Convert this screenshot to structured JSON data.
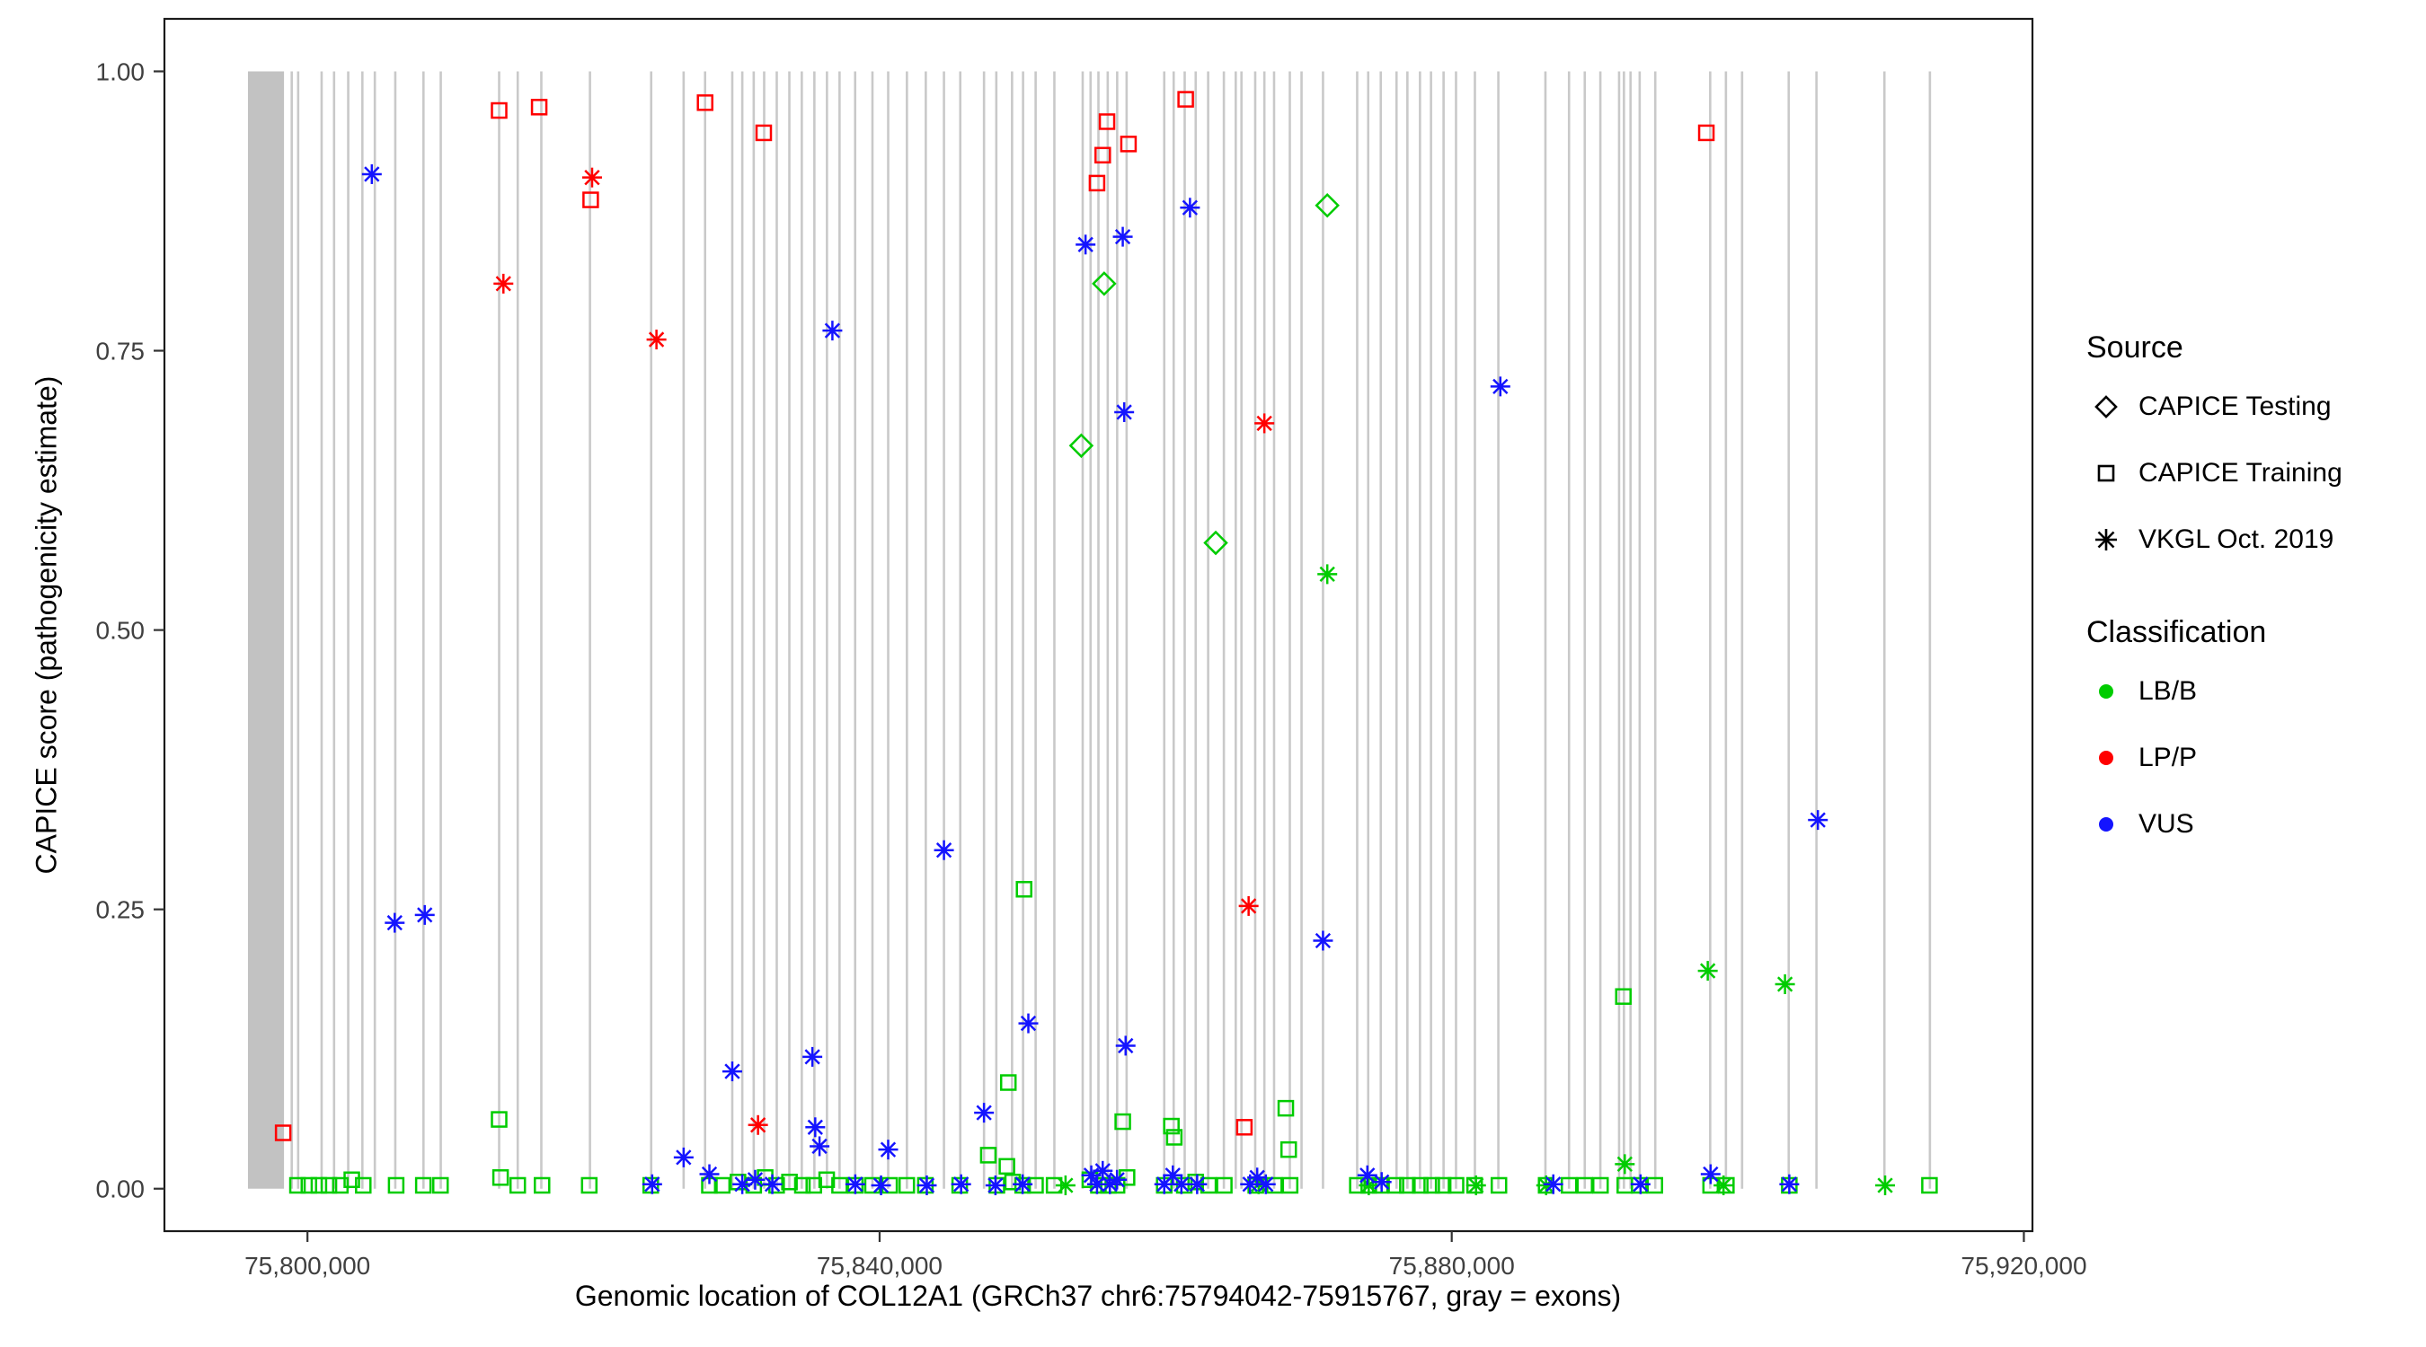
{
  "legend": {
    "source": {
      "title": "Source",
      "items": [
        {
          "label": "CAPICE Testing",
          "marker": "diamond"
        },
        {
          "label": "CAPICE Training",
          "marker": "square"
        },
        {
          "label": "VKGL Oct. 2019",
          "marker": "asterisk"
        }
      ]
    },
    "classification": {
      "title": "Classification",
      "items": [
        {
          "label": "LB/B",
          "color": "#00CC00"
        },
        {
          "label": "LP/P",
          "color": "#FF0000"
        },
        {
          "label": "VUS",
          "color": "#1414FF"
        }
      ]
    }
  },
  "chart_data": {
    "type": "scatter",
    "title": "",
    "xlabel": "Genomic location of COL12A1 (GRCh37 chr6:75794042-75915767, gray = exons)",
    "ylabel": "CAPICE score (pathogenicity estimate)",
    "xlim": [
      75790000,
      75920600
    ],
    "ylim": [
      -0.038,
      1.047
    ],
    "x_ticks": [
      {
        "value": 75800000,
        "label": "75,800,000"
      },
      {
        "value": 75840000,
        "label": "75,840,000"
      },
      {
        "value": 75880000,
        "label": "75,880,000"
      },
      {
        "value": 75920000,
        "label": "75,920,000"
      }
    ],
    "y_ticks": [
      {
        "value": 0.0,
        "label": "0.00"
      },
      {
        "value": 0.25,
        "label": "0.25"
      },
      {
        "value": 0.5,
        "label": "0.50"
      },
      {
        "value": 0.75,
        "label": "0.75"
      },
      {
        "value": 1.0,
        "label": "1.00"
      }
    ],
    "exon_color": "#C9C9C9",
    "exon_band_color": "#C2C2C2",
    "exon_bands": [
      {
        "start": 75795840,
        "end": 75798360
      }
    ],
    "exons": [
      75798900,
      75799350,
      75800990,
      75801860,
      75802850,
      75803840,
      75804710,
      75806140,
      75808110,
      75809320,
      75813400,
      75814700,
      75816350,
      75819750,
      75824030,
      75826300,
      75827800,
      75829700,
      75830400,
      75831200,
      75831930,
      75832810,
      75833690,
      75834560,
      75835440,
      75836320,
      75837200,
      75838290,
      75839500,
      75840600,
      75841910,
      75843230,
      75844500,
      75845640,
      75847300,
      75848160,
      75849260,
      75850030,
      75850910,
      75852220,
      75854200,
      75854750,
      75855300,
      75855950,
      75856610,
      75857270,
      75859900,
      75860560,
      75861330,
      75862100,
      75862970,
      75864070,
      75864900,
      75865300,
      75866260,
      75866900,
      75867580,
      75868680,
      75869500,
      75871000,
      75873390,
      75874160,
      75875040,
      75876140,
      75876900,
      75877780,
      75878550,
      75879430,
      75880300,
      75881620,
      75883260,
      75886550,
      75888200,
      75889300,
      75890390,
      75891700,
      75892040,
      75892500,
      75893140,
      75894230,
      75898070,
      75899170,
      75900300,
      75903560,
      75905500,
      75910250,
      75913430
    ],
    "series": [
      {
        "source": "CAPICE Training",
        "classification": "LB/B",
        "marker": "square",
        "color": "#00CC00",
        "points": [
          [
            75799300,
            0.003
          ],
          [
            75800100,
            0.003
          ],
          [
            75800800,
            0.003
          ],
          [
            75801500,
            0.003
          ],
          [
            75802300,
            0.003
          ],
          [
            75803100,
            0.008
          ],
          [
            75803900,
            0.003
          ],
          [
            75806200,
            0.003
          ],
          [
            75808100,
            0.003
          ],
          [
            75809300,
            0.003
          ],
          [
            75813400,
            0.062
          ],
          [
            75813500,
            0.01
          ],
          [
            75814700,
            0.003
          ],
          [
            75816400,
            0.003
          ],
          [
            75819700,
            0.003
          ],
          [
            75824000,
            0.003
          ],
          [
            75828100,
            0.003
          ],
          [
            75829000,
            0.003
          ],
          [
            75830100,
            0.006
          ],
          [
            75831200,
            0.003
          ],
          [
            75832000,
            0.01
          ],
          [
            75832800,
            0.003
          ],
          [
            75833700,
            0.006
          ],
          [
            75834600,
            0.003
          ],
          [
            75835400,
            0.003
          ],
          [
            75836300,
            0.008
          ],
          [
            75837200,
            0.003
          ],
          [
            75838300,
            0.003
          ],
          [
            75839500,
            0.003
          ],
          [
            75840700,
            0.003
          ],
          [
            75841900,
            0.003
          ],
          [
            75843200,
            0.003
          ],
          [
            75845600,
            0.003
          ],
          [
            75847600,
            0.03
          ],
          [
            75848200,
            0.003
          ],
          [
            75848900,
            0.02
          ],
          [
            75849000,
            0.095
          ],
          [
            75849300,
            0.006
          ],
          [
            75850000,
            0.003
          ],
          [
            75850100,
            0.268
          ],
          [
            75850900,
            0.003
          ],
          [
            75852200,
            0.003
          ],
          [
            75854700,
            0.008
          ],
          [
            75855300,
            0.003
          ],
          [
            75856000,
            0.003
          ],
          [
            75856600,
            0.003
          ],
          [
            75857000,
            0.06
          ],
          [
            75857300,
            0.01
          ],
          [
            75859900,
            0.003
          ],
          [
            75860400,
            0.056
          ],
          [
            75860600,
            0.046
          ],
          [
            75861300,
            0.003
          ],
          [
            75862100,
            0.006
          ],
          [
            75863000,
            0.003
          ],
          [
            75864100,
            0.003
          ],
          [
            75866300,
            0.003
          ],
          [
            75867600,
            0.003
          ],
          [
            75868400,
            0.072
          ],
          [
            75868600,
            0.035
          ],
          [
            75868700,
            0.003
          ],
          [
            75873400,
            0.003
          ],
          [
            75874200,
            0.003
          ],
          [
            75875000,
            0.003
          ],
          [
            75876100,
            0.003
          ],
          [
            75876900,
            0.003
          ],
          [
            75877800,
            0.003
          ],
          [
            75878600,
            0.003
          ],
          [
            75879400,
            0.003
          ],
          [
            75880300,
            0.003
          ],
          [
            75881600,
            0.003
          ],
          [
            75883300,
            0.003
          ],
          [
            75886600,
            0.003
          ],
          [
            75888200,
            0.003
          ],
          [
            75889300,
            0.003
          ],
          [
            75890400,
            0.003
          ],
          [
            75892000,
            0.172
          ],
          [
            75892100,
            0.003
          ],
          [
            75893100,
            0.003
          ],
          [
            75894200,
            0.003
          ],
          [
            75898100,
            0.003
          ],
          [
            75899200,
            0.003
          ],
          [
            75903600,
            0.003
          ],
          [
            75913400,
            0.003
          ]
        ]
      },
      {
        "source": "VKGL Oct. 2019",
        "classification": "LB/B",
        "marker": "asterisk",
        "color": "#00CC00",
        "points": [
          [
            75853000,
            0.003
          ],
          [
            75866500,
            0.004
          ],
          [
            75871300,
            0.55
          ],
          [
            75874200,
            0.003
          ],
          [
            75881700,
            0.003
          ],
          [
            75886600,
            0.003
          ],
          [
            75892100,
            0.022
          ],
          [
            75897900,
            0.195
          ],
          [
            75899000,
            0.003
          ],
          [
            75903300,
            0.183
          ],
          [
            75910300,
            0.003
          ]
        ]
      },
      {
        "source": "VKGL Oct. 2019",
        "classification": "VUS",
        "marker": "asterisk",
        "color": "#1414FF",
        "points": [
          [
            75804500,
            0.908
          ],
          [
            75806100,
            0.238
          ],
          [
            75808200,
            0.245
          ],
          [
            75824100,
            0.004
          ],
          [
            75826300,
            0.028
          ],
          [
            75828100,
            0.013
          ],
          [
            75829700,
            0.105
          ],
          [
            75830400,
            0.004
          ],
          [
            75831300,
            0.008
          ],
          [
            75832500,
            0.004
          ],
          [
            75835300,
            0.118
          ],
          [
            75835500,
            0.055
          ],
          [
            75835800,
            0.038
          ],
          [
            75836700,
            0.768
          ],
          [
            75838300,
            0.004
          ],
          [
            75840100,
            0.003
          ],
          [
            75840600,
            0.035
          ],
          [
            75843300,
            0.003
          ],
          [
            75844500,
            0.303
          ],
          [
            75845700,
            0.004
          ],
          [
            75847300,
            0.068
          ],
          [
            75848100,
            0.003
          ],
          [
            75850000,
            0.004
          ],
          [
            75850400,
            0.148
          ],
          [
            75854400,
            0.845
          ],
          [
            75854800,
            0.012
          ],
          [
            75855200,
            0.004
          ],
          [
            75855600,
            0.016
          ],
          [
            75856100,
            0.004
          ],
          [
            75856600,
            0.008
          ],
          [
            75857000,
            0.852
          ],
          [
            75857100,
            0.695
          ],
          [
            75857200,
            0.128
          ],
          [
            75859900,
            0.004
          ],
          [
            75860500,
            0.012
          ],
          [
            75861100,
            0.004
          ],
          [
            75861700,
            0.878
          ],
          [
            75862200,
            0.004
          ],
          [
            75865900,
            0.004
          ],
          [
            75866400,
            0.01
          ],
          [
            75867000,
            0.004
          ],
          [
            75871000,
            0.222
          ],
          [
            75874100,
            0.012
          ],
          [
            75875100,
            0.006
          ],
          [
            75883400,
            0.718
          ],
          [
            75887100,
            0.004
          ],
          [
            75893200,
            0.004
          ],
          [
            75898100,
            0.013
          ],
          [
            75903600,
            0.004
          ],
          [
            75905600,
            0.33
          ]
        ]
      },
      {
        "source": "CAPICE Training",
        "classification": "LP/P",
        "marker": "square",
        "color": "#FF0000",
        "points": [
          [
            75798300,
            0.05
          ],
          [
            75813400,
            0.965
          ],
          [
            75816200,
            0.968
          ],
          [
            75819800,
            0.885
          ],
          [
            75827800,
            0.972
          ],
          [
            75831900,
            0.945
          ],
          [
            75855200,
            0.9
          ],
          [
            75855600,
            0.925
          ],
          [
            75855900,
            0.955
          ],
          [
            75857400,
            0.935
          ],
          [
            75861400,
            0.975
          ],
          [
            75865500,
            0.055
          ],
          [
            75897800,
            0.945
          ]
        ]
      },
      {
        "source": "VKGL Oct. 2019",
        "classification": "LP/P",
        "marker": "asterisk",
        "color": "#FF0000",
        "points": [
          [
            75813700,
            0.81
          ],
          [
            75819900,
            0.905
          ],
          [
            75824400,
            0.76
          ],
          [
            75831500,
            0.057
          ],
          [
            75865800,
            0.253
          ],
          [
            75866900,
            0.685
          ]
        ]
      },
      {
        "source": "CAPICE Testing",
        "classification": "LB/B",
        "marker": "diamond",
        "color": "#00CC00",
        "points": [
          [
            75854100,
            0.665
          ],
          [
            75855700,
            0.81
          ],
          [
            75863500,
            0.578
          ],
          [
            75871300,
            0.88
          ]
        ]
      }
    ]
  }
}
